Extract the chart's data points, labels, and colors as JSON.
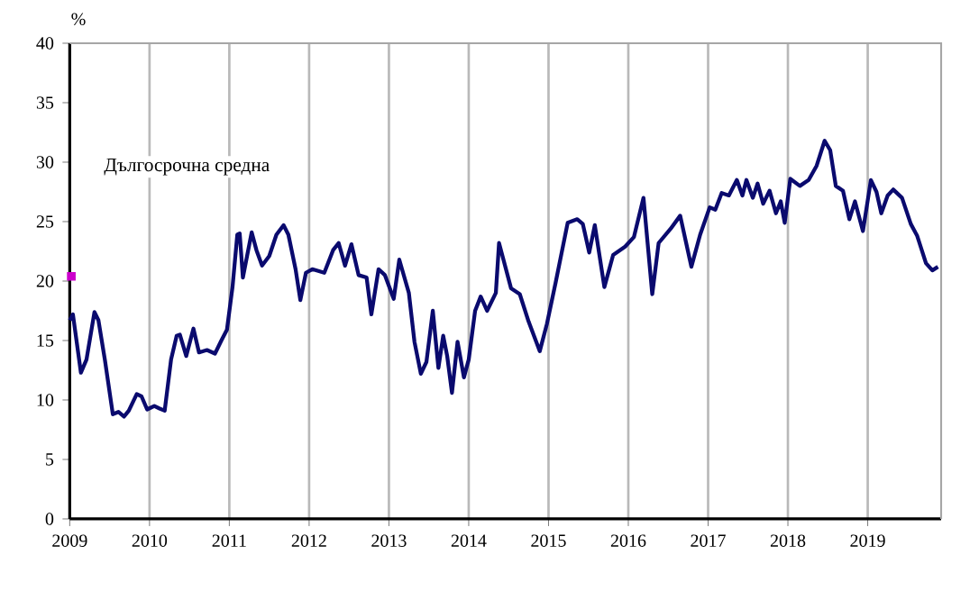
{
  "chart_data": {
    "type": "line",
    "ylabel": "%",
    "annotations": [
      "Дългосрочна средна"
    ],
    "xlim": [
      2009,
      2019.92
    ],
    "xticks": [
      2009,
      2010,
      2011,
      2012,
      2013,
      2014,
      2015,
      2016,
      2017,
      2018,
      2019
    ],
    "ylim": [
      0,
      40
    ],
    "yticks": [
      0,
      5,
      10,
      15,
      20,
      25,
      30,
      35,
      40
    ],
    "grid": "x",
    "series": [
      {
        "color": "#0a0a6e",
        "x": [
          2009.0,
          2009.04,
          2009.14,
          2009.21,
          2009.31,
          2009.36,
          2009.44,
          2009.54,
          2009.61,
          2009.68,
          2009.74,
          2009.84,
          2009.9,
          2009.97,
          2010.06,
          2010.12,
          2010.19,
          2010.27,
          2010.34,
          2010.38,
          2010.46,
          2010.55,
          2010.62,
          2010.72,
          2010.82,
          2010.9,
          2010.97,
          2011.04,
          2011.1,
          2011.13,
          2011.17,
          2011.28,
          2011.34,
          2011.41,
          2011.5,
          2011.59,
          2011.68,
          2011.74,
          2011.83,
          2011.89,
          2011.96,
          2012.04,
          2012.19,
          2012.3,
          2012.37,
          2012.45,
          2012.53,
          2012.62,
          2012.72,
          2012.78,
          2012.87,
          2012.95,
          2013.06,
          2013.13,
          2013.25,
          2013.32,
          2013.4,
          2013.47,
          2013.55,
          2013.62,
          2013.68,
          2013.73,
          2013.79,
          2013.86,
          2013.94,
          2014.0,
          2014.08,
          2014.15,
          2014.23,
          2014.34,
          2014.38,
          2014.53,
          2014.64,
          2014.75,
          2014.89,
          2014.98,
          2015.09,
          2015.24,
          2015.36,
          2015.43,
          2015.51,
          2015.58,
          2015.7,
          2015.81,
          2015.96,
          2016.07,
          2016.19,
          2016.3,
          2016.38,
          2016.53,
          2016.65,
          2016.79,
          2016.9,
          2017.02,
          2017.09,
          2017.17,
          2017.26,
          2017.36,
          2017.43,
          2017.48,
          2017.56,
          2017.62,
          2017.69,
          2017.77,
          2017.85,
          2017.91,
          2017.96,
          2018.03,
          2018.15,
          2018.26,
          2018.36,
          2018.46,
          2018.53,
          2018.6,
          2018.69,
          2018.77,
          2018.84,
          2018.94,
          2019.04,
          2019.11,
          2019.17,
          2019.25,
          2019.32,
          2019.43,
          2019.54,
          2019.62,
          2019.73,
          2019.81,
          2019.88
        ],
        "values": [
          16.7,
          17.2,
          12.3,
          13.4,
          17.4,
          16.7,
          13.4,
          8.8,
          9.0,
          8.6,
          9.1,
          10.5,
          10.3,
          9.2,
          9.5,
          9.3,
          9.1,
          13.4,
          15.4,
          15.5,
          13.7,
          16.0,
          14.0,
          14.2,
          13.9,
          15.0,
          15.9,
          19.5,
          23.9,
          24.0,
          20.3,
          24.1,
          22.6,
          21.3,
          22.1,
          23.9,
          24.7,
          23.9,
          21.0,
          18.4,
          20.7,
          21.0,
          20.7,
          22.6,
          23.2,
          21.3,
          23.1,
          20.5,
          20.3,
          17.2,
          21.0,
          20.5,
          18.5,
          21.8,
          19.0,
          14.9,
          12.2,
          13.2,
          17.5,
          12.7,
          15.4,
          13.7,
          10.6,
          14.9,
          11.9,
          13.4,
          17.5,
          18.7,
          17.5,
          19.0,
          23.2,
          19.4,
          18.9,
          16.6,
          14.1,
          16.4,
          19.9,
          24.9,
          25.2,
          24.8,
          22.4,
          24.7,
          19.5,
          22.2,
          22.9,
          23.7,
          27.0,
          18.9,
          23.2,
          24.4,
          25.5,
          21.2,
          23.9,
          26.2,
          26.0,
          27.4,
          27.2,
          28.5,
          27.2,
          28.5,
          27.0,
          28.2,
          26.5,
          27.6,
          25.7,
          26.7,
          24.9,
          28.6,
          28.0,
          28.5,
          29.7,
          31.8,
          31.0,
          28.0,
          27.6,
          25.2,
          26.7,
          24.2,
          28.5,
          27.5,
          25.7,
          27.2,
          27.7,
          27.0,
          24.8,
          23.8,
          21.5,
          20.9,
          21.2
        ]
      },
      {
        "type": "scatter",
        "color": "#cc00cc",
        "marker": "square",
        "x": [
          2009.02
        ],
        "values": [
          20.4
        ]
      }
    ]
  }
}
